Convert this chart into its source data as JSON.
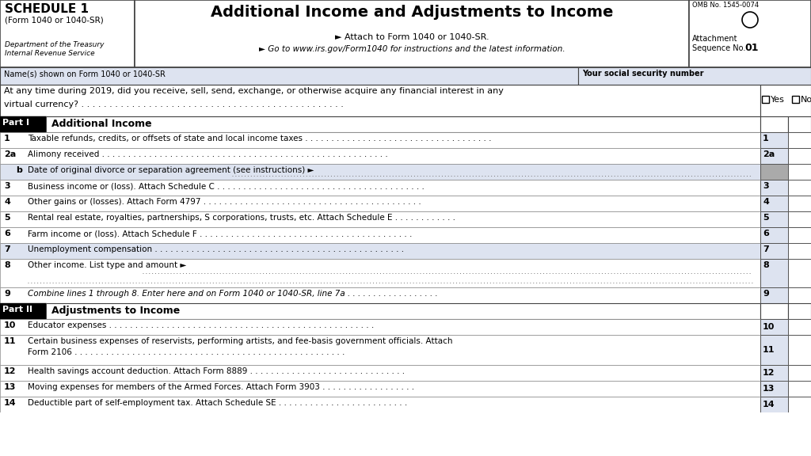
{
  "title": "Additional Income and Adjustments to Income",
  "schedule_label": "SCHEDULE 1",
  "form_label": "(Form 1040 or 1040-SR)",
  "dept_label": "Department of the Treasury",
  "irs_label": "Internal Revenue Service",
  "attach_line1": "► Attach to Form 1040 or 1040-SR.",
  "attach_line2": "► Go to www.irs.gov/Form1040 for instructions and the latest information.",
  "omb_label": "OMB No. 1545-0074",
  "ssn_label": "Your social security number",
  "name_label": "Name(s) shown on Form 1040 or 1040-SR",
  "bg_color": "#ffffff",
  "header_bg": "#dde3f0",
  "row_highlight": "#dde3f0",
  "gray_box": "#aaaaaa",
  "part1_label": "Part I",
  "part1_title": "Additional Income",
  "part2_label": "Part II",
  "part2_title": "Adjustments to Income",
  "rows_part1": [
    {
      "num": "1",
      "text": "Taxable refunds, credits, or offsets of state and local income taxes . . . . . . . . . . . . . . . . . . . . . . . . . . . . . . . . . . . .",
      "bg": "white",
      "label": "1",
      "gray": false,
      "dotted": false,
      "tall": false
    },
    {
      "num": "2a",
      "text": "Alimony received . . . . . . . . . . . . . . . . . . . . . . . . . . . . . . . . . . . . . . . . . . . . . . . . . . . . . . .",
      "bg": "white",
      "label": "2a",
      "gray": false,
      "dotted": false,
      "tall": false
    },
    {
      "num": "b",
      "text": "Date of original divorce or separation agreement (see instructions) ►",
      "bg": "#dde3f0",
      "label": "",
      "gray": true,
      "dotted": true,
      "tall": false
    },
    {
      "num": "3",
      "text": "Business income or (loss). Attach Schedule C . . . . . . . . . . . . . . . . . . . . . . . . . . . . . . . . . . . . . . . .",
      "bg": "white",
      "label": "3",
      "gray": false,
      "dotted": false,
      "tall": false
    },
    {
      "num": "4",
      "text": "Other gains or (losses). Attach Form 4797 . . . . . . . . . . . . . . . . . . . . . . . . . . . . . . . . . . . . . . . . . .",
      "bg": "white",
      "label": "4",
      "gray": false,
      "dotted": false,
      "tall": false
    },
    {
      "num": "5",
      "text": "Rental real estate, royalties, partnerships, S corporations, trusts, etc. Attach Schedule E . . . . . . . . . . . .",
      "bg": "white",
      "label": "5",
      "gray": false,
      "dotted": false,
      "tall": false
    },
    {
      "num": "6",
      "text": "Farm income or (loss). Attach Schedule F . . . . . . . . . . . . . . . . . . . . . . . . . . . . . . . . . . . . . . . . .",
      "bg": "white",
      "label": "6",
      "gray": false,
      "dotted": false,
      "tall": false
    },
    {
      "num": "7",
      "text": "Unemployment compensation . . . . . . . . . . . . . . . . . . . . . . . . . . . . . . . . . . . . . . . . . . . . . . . .",
      "bg": "#dde3f0",
      "label": "7",
      "gray": false,
      "dotted": false,
      "tall": false
    },
    {
      "num": "8",
      "text": "Other income. List type and amount ►",
      "bg": "white",
      "label": "8",
      "gray": false,
      "dotted": true,
      "tall": true
    },
    {
      "num": "9",
      "text": "Combine lines 1 through 8. Enter here and on Form 1040 or 1040-SR, line 7a . . . . . . . . . . . . . . . . . .",
      "bg": "white",
      "label": "9",
      "gray": false,
      "dotted": false,
      "tall": false,
      "italic": true
    }
  ],
  "rows_part2": [
    {
      "num": "10",
      "text": "Educator expenses . . . . . . . . . . . . . . . . . . . . . . . . . . . . . . . . . . . . . . . . . . . . . . . . . . .",
      "bg": "white",
      "label": "10",
      "tall": false
    },
    {
      "num": "11",
      "text": "Certain business expenses of reservists, performing artists, and fee-basis government officials. Attach\nForm 2106 . . . . . . . . . . . . . . . . . . . . . . . . . . . . . . . . . . . . . . . . . . . . . . . . . . . .",
      "bg": "white",
      "label": "11",
      "tall": true
    },
    {
      "num": "12",
      "text": "Health savings account deduction. Attach Form 8889 . . . . . . . . . . . . . . . . . . . . . . . . . . . . . .",
      "bg": "white",
      "label": "12",
      "tall": false
    },
    {
      "num": "13",
      "text": "Moving expenses for members of the Armed Forces. Attach Form 3903 . . . . . . . . . . . . . . . . . .",
      "bg": "white",
      "label": "13",
      "tall": false
    },
    {
      "num": "14",
      "text": "Deductible part of self-employment tax. Attach Schedule SE . . . . . . . . . . . . . . . . . . . . . . . . .",
      "bg": "white",
      "label": "14",
      "tall": false
    }
  ]
}
